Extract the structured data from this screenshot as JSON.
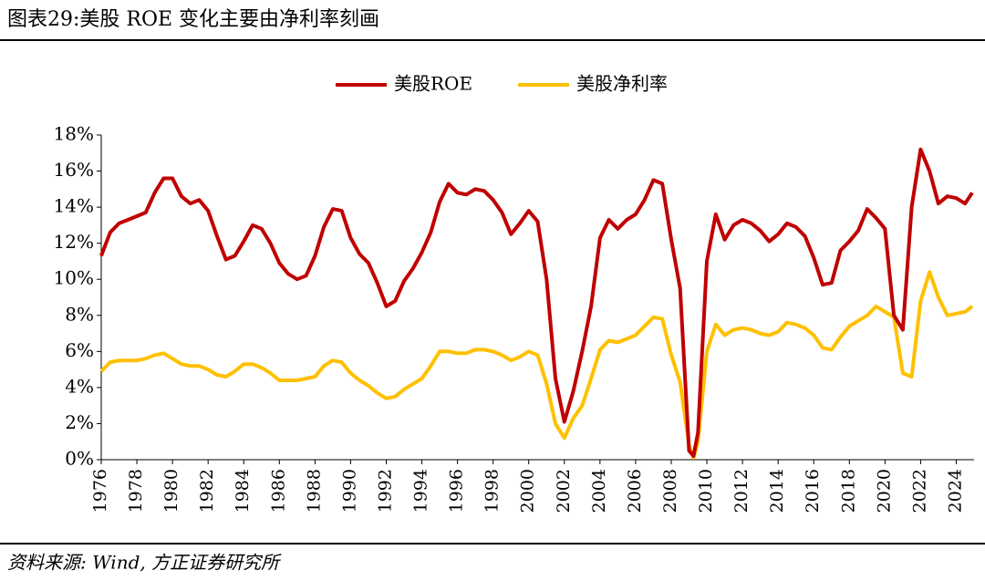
{
  "chart_data": {
    "type": "line",
    "title": "图表29:美股 ROE 变化主要由净利率刻画",
    "source": "资料来源: Wind, 方正证券研究所",
    "x": [
      1976,
      1976.5,
      1977,
      1977.5,
      1978,
      1978.5,
      1979,
      1979.5,
      1980,
      1980.5,
      1981,
      1981.5,
      1982,
      1982.5,
      1983,
      1983.5,
      1984,
      1984.5,
      1985,
      1985.5,
      1986,
      1986.5,
      1987,
      1987.5,
      1988,
      1988.5,
      1989,
      1989.5,
      1990,
      1990.5,
      1991,
      1991.5,
      1992,
      1992.5,
      1993,
      1993.5,
      1994,
      1994.5,
      1995,
      1995.5,
      1996,
      1996.5,
      1997,
      1997.5,
      1998,
      1998.5,
      1999,
      1999.5,
      2000,
      2000.5,
      2001,
      2001.5,
      2002,
      2002.5,
      2003,
      2003.5,
      2004,
      2004.5,
      2005,
      2005.5,
      2006,
      2006.5,
      2007,
      2007.5,
      2008,
      2008.5,
      2009,
      2009.25,
      2009.5,
      2010,
      2010.5,
      2011,
      2011.5,
      2012,
      2012.5,
      2013,
      2013.5,
      2014,
      2014.5,
      2015,
      2015.5,
      2016,
      2016.5,
      2017,
      2017.5,
      2018,
      2018.5,
      2019,
      2019.5,
      2020,
      2020.5,
      2021,
      2021.5,
      2022,
      2022.5,
      2023,
      2023.5,
      2024,
      2024.5,
      2024.9
    ],
    "series": [
      {
        "name": "美股ROE",
        "color": "#c00000",
        "values": [
          11.3,
          12.6,
          13.1,
          13.3,
          13.5,
          13.7,
          14.8,
          15.6,
          15.6,
          14.6,
          14.2,
          14.4,
          13.8,
          12.4,
          11.1,
          11.3,
          12.1,
          13.0,
          12.8,
          12.0,
          10.9,
          10.3,
          10.0,
          10.2,
          11.3,
          12.9,
          13.9,
          13.8,
          12.3,
          11.4,
          10.9,
          9.8,
          8.5,
          8.8,
          9.9,
          10.6,
          11.5,
          12.6,
          14.3,
          15.3,
          14.8,
          14.7,
          15.0,
          14.9,
          14.4,
          13.7,
          12.5,
          13.1,
          13.8,
          13.2,
          10.0,
          4.5,
          2.1,
          3.8,
          6.0,
          8.5,
          12.3,
          13.3,
          12.8,
          13.3,
          13.6,
          14.4,
          15.5,
          15.3,
          12.2,
          9.5,
          0.5,
          0.2,
          1.5,
          11.0,
          13.6,
          12.2,
          13.0,
          13.3,
          13.1,
          12.7,
          12.1,
          12.5,
          13.1,
          12.9,
          12.4,
          11.2,
          9.7,
          9.8,
          11.6,
          12.1,
          12.7,
          13.9,
          13.4,
          12.8,
          8.0,
          7.2,
          14.0,
          17.2,
          16.0,
          14.2,
          14.6,
          14.5,
          14.2,
          14.8
        ]
      },
      {
        "name": "美股净利率",
        "color": "#ffc000",
        "values": [
          4.9,
          5.4,
          5.5,
          5.5,
          5.5,
          5.6,
          5.8,
          5.9,
          5.6,
          5.3,
          5.2,
          5.2,
          5.0,
          4.7,
          4.6,
          4.9,
          5.3,
          5.3,
          5.1,
          4.8,
          4.4,
          4.4,
          4.4,
          4.5,
          4.6,
          5.2,
          5.5,
          5.4,
          4.8,
          4.4,
          4.1,
          3.7,
          3.4,
          3.5,
          3.9,
          4.2,
          4.5,
          5.2,
          6.0,
          6.0,
          5.9,
          5.9,
          6.1,
          6.1,
          6.0,
          5.8,
          5.5,
          5.7,
          6.0,
          5.8,
          4.2,
          2.0,
          1.2,
          2.3,
          3.0,
          4.5,
          6.1,
          6.6,
          6.5,
          6.7,
          6.9,
          7.4,
          7.9,
          7.8,
          5.8,
          4.3,
          0.8,
          0.1,
          1.0,
          6.0,
          7.5,
          6.9,
          7.2,
          7.3,
          7.2,
          7.0,
          6.9,
          7.1,
          7.6,
          7.5,
          7.3,
          6.9,
          6.2,
          6.1,
          6.8,
          7.4,
          7.7,
          8.0,
          8.5,
          8.2,
          7.9,
          4.8,
          4.6,
          8.8,
          10.4,
          9.0,
          8.0,
          8.1,
          8.2,
          8.5
        ]
      }
    ],
    "xlim": [
      1976,
      2025
    ],
    "xticks": [
      1976,
      1978,
      1980,
      1982,
      1984,
      1986,
      1988,
      1990,
      1992,
      1994,
      1996,
      1998,
      2000,
      2002,
      2004,
      2006,
      2008,
      2010,
      2012,
      2014,
      2016,
      2018,
      2020,
      2022,
      2024
    ],
    "ylim": [
      0,
      18
    ],
    "yticks": [
      {
        "value": 0,
        "label": "0%"
      },
      {
        "value": 2,
        "label": "2%"
      },
      {
        "value": 4,
        "label": "4%"
      },
      {
        "value": 6,
        "label": "6%"
      },
      {
        "value": 8,
        "label": "8%"
      },
      {
        "value": 10,
        "label": "10%"
      },
      {
        "value": 12,
        "label": "12%"
      },
      {
        "value": 14,
        "label": "14%"
      },
      {
        "value": 16,
        "label": "16%"
      },
      {
        "value": 18,
        "label": "18%"
      }
    ],
    "legend": "top"
  }
}
